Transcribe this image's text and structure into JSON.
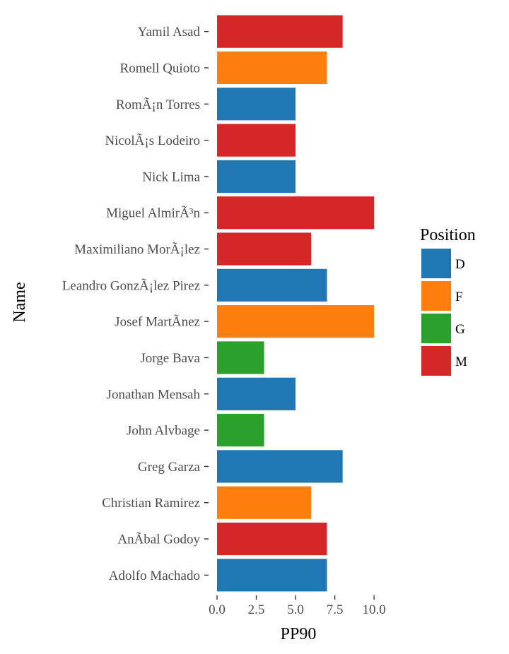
{
  "chart_data": {
    "type": "bar",
    "orientation": "horizontal",
    "xlabel": "PP90",
    "ylabel": "Name",
    "xlim": [
      0,
      10.4
    ],
    "x_ticks": [
      0,
      2.5,
      5,
      7.5,
      10
    ],
    "x_tick_labels": [
      "0.0",
      "2.5",
      "5.0",
      "7.5",
      "10.0"
    ],
    "grid": false,
    "legend": {
      "title": "Position",
      "placement": "right",
      "entries": [
        {
          "label": "D",
          "color": "#1f77b4"
        },
        {
          "label": "F",
          "color": "#ff7f0e"
        },
        {
          "label": "G",
          "color": "#2ca02c"
        },
        {
          "label": "M",
          "color": "#d62728"
        }
      ]
    },
    "categories": [
      "Yamil Asad",
      "Romell Quioto",
      "RomÃ¡n Torres",
      "NicolÃ¡s Lodeiro",
      "Nick Lima",
      "Miguel AlmirÃ³n",
      "Maximiliano MorÃ¡lez",
      "Leandro GonzÃ¡lez Pirez",
      "Josef MartÃ­nez",
      "Jorge Bava",
      "Jonathan Mensah",
      "John Alvbage",
      "Greg Garza",
      "Christian Ramirez",
      "AnÃ­bal Godoy",
      "Adolfo Machado"
    ],
    "values": [
      8,
      7,
      5,
      5,
      5,
      10,
      6,
      7,
      10,
      3,
      5,
      3,
      8,
      6,
      7,
      7
    ],
    "positions": [
      "M",
      "F",
      "D",
      "M",
      "D",
      "M",
      "M",
      "D",
      "F",
      "G",
      "D",
      "G",
      "D",
      "F",
      "M",
      "D"
    ]
  }
}
